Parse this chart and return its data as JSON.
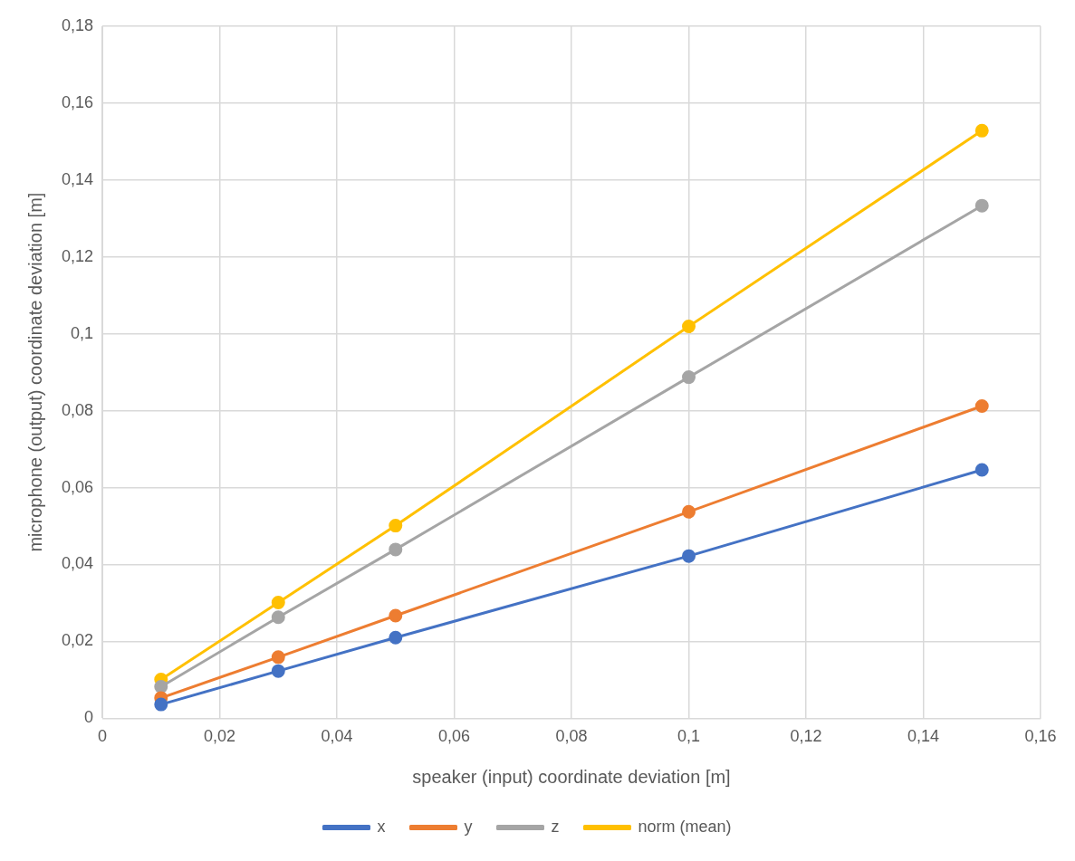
{
  "chart_data": {
    "type": "line",
    "xlabel": "speaker (input) coordinate deviation [m]",
    "ylabel": "microphone (output) coordinate deviation [m]",
    "x": [
      0.01,
      0.03,
      0.05,
      0.1,
      0.15
    ],
    "series": [
      {
        "name": "x",
        "color": "#4472c4",
        "values": [
          0.0036,
          0.0123,
          0.021,
          0.0422,
          0.0646
        ]
      },
      {
        "name": "y",
        "color": "#ed7d31",
        "values": [
          0.0053,
          0.0159,
          0.0267,
          0.0537,
          0.0812
        ]
      },
      {
        "name": "z",
        "color": "#a5a5a5",
        "values": [
          0.0082,
          0.0263,
          0.0439,
          0.0887,
          0.1333
        ]
      },
      {
        "name": "norm (mean)",
        "color": "#ffc000",
        "values": [
          0.0101,
          0.0301,
          0.0501,
          0.1019,
          0.1528
        ]
      }
    ],
    "xlim": [
      0,
      0.16
    ],
    "xticks": [
      0,
      {
        "value": 0.02,
        "label": "0,02"
      },
      {
        "value": 0.04,
        "label": "0,04"
      },
      {
        "value": 0.06,
        "label": "0,06"
      },
      {
        "value": 0.08,
        "label": "0,08"
      },
      {
        "value": 0.1,
        "label": "0,1"
      },
      {
        "value": 0.12,
        "label": "0,12"
      },
      {
        "value": 0.14,
        "label": "0,14"
      },
      {
        "value": 0.16,
        "label": "0,16"
      }
    ],
    "ylim": [
      0,
      0.18
    ],
    "yticks": [
      0,
      {
        "value": 0.02,
        "label": "0,02"
      },
      {
        "value": 0.04,
        "label": "0,04"
      },
      {
        "value": 0.06,
        "label": "0,06"
      },
      {
        "value": 0.08,
        "label": "0,08"
      },
      {
        "value": 0.1,
        "label": "0,1"
      },
      {
        "value": 0.12,
        "label": "0,12"
      },
      {
        "value": 0.14,
        "label": "0,14"
      },
      {
        "value": 0.16,
        "label": "0,16"
      },
      {
        "value": 0.18,
        "label": "0,18"
      }
    ],
    "grid": true,
    "legend": "bottom",
    "marker": "circle",
    "line_style": "solid"
  }
}
